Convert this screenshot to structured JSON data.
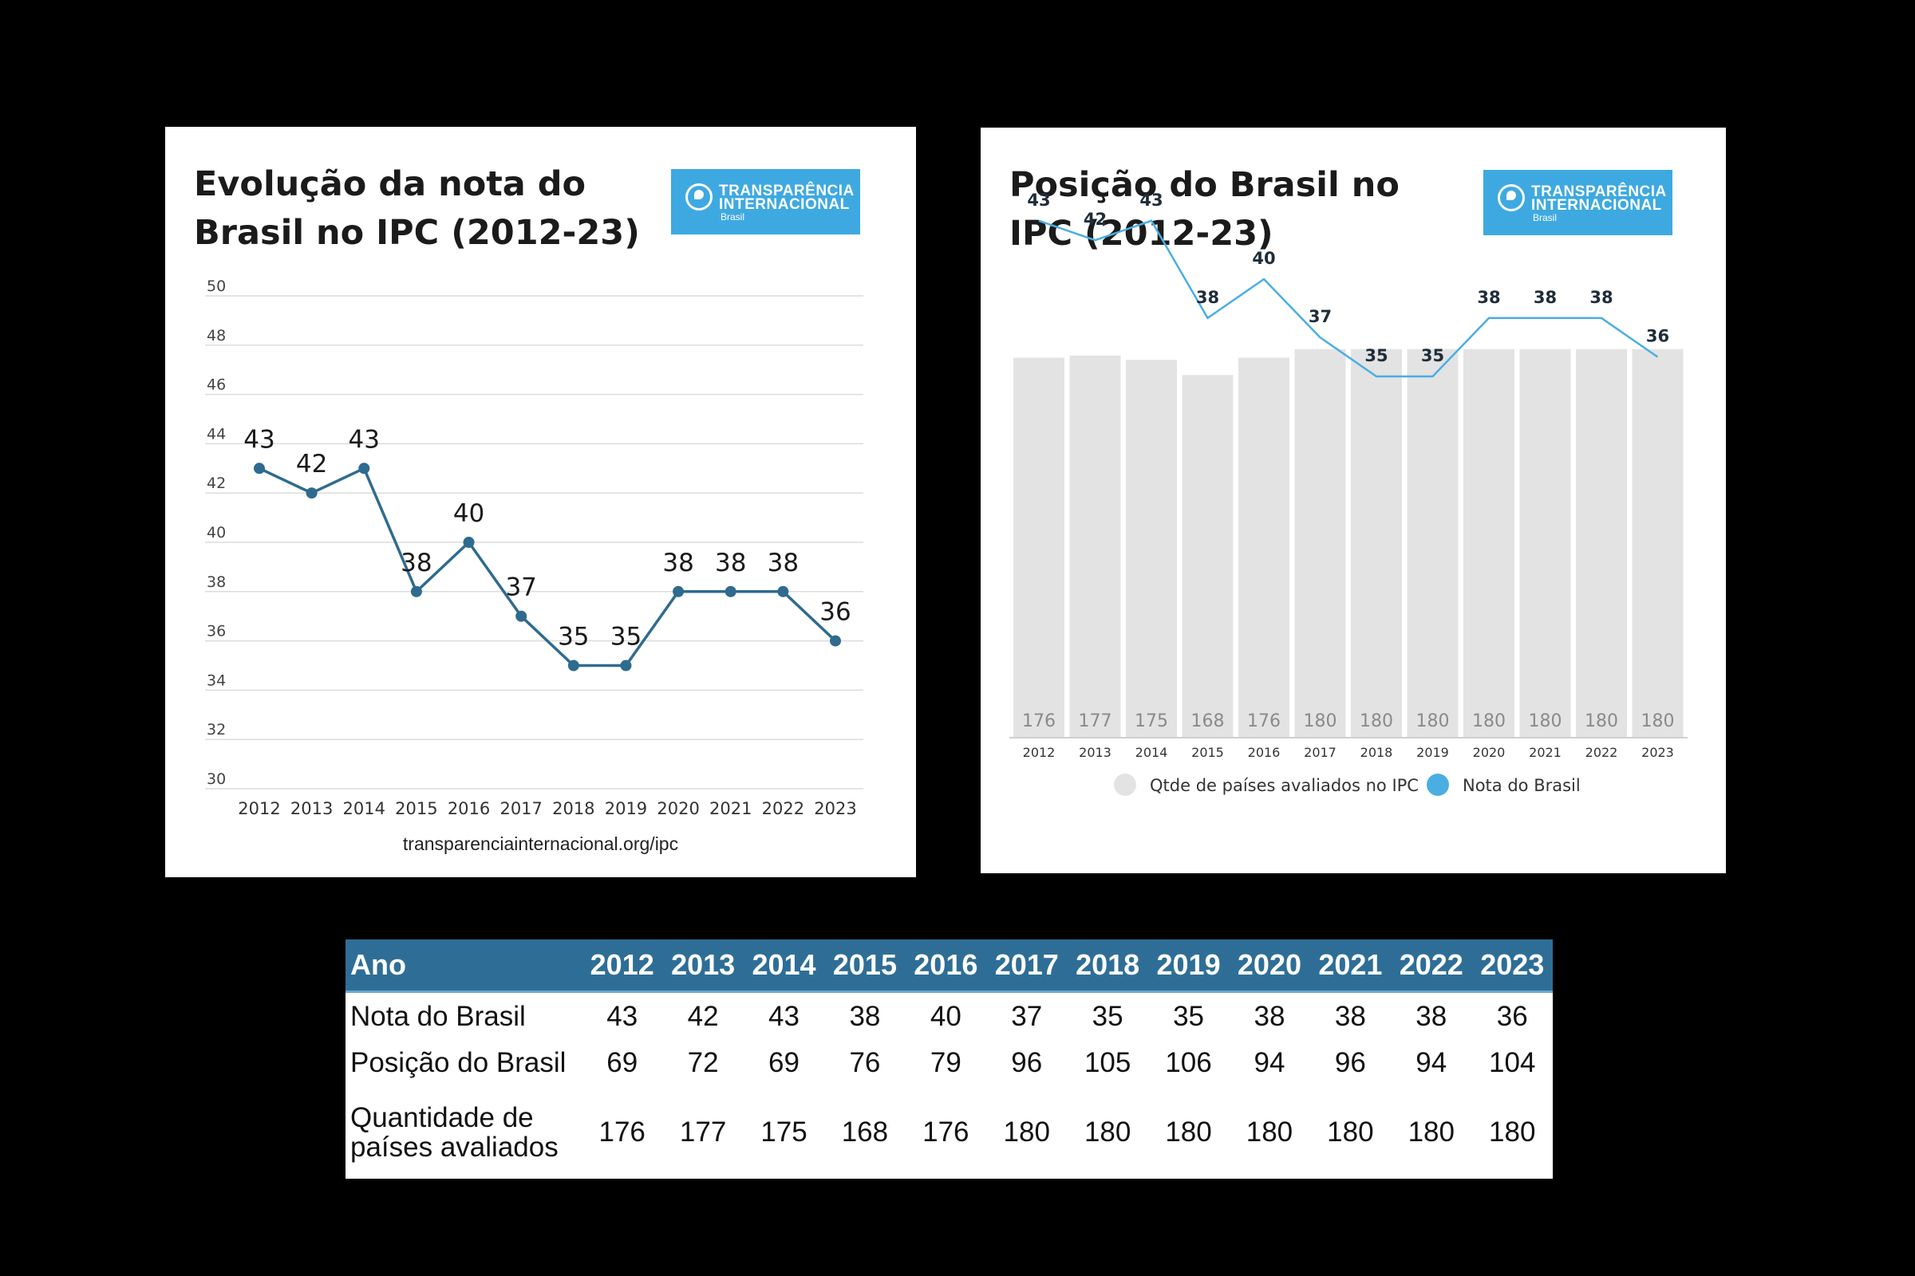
{
  "chart_data": [
    {
      "type": "line",
      "title": "Evolução da nota do Brasil no IPC (2012-23)",
      "logo": {
        "line1": "TRANSPARÊNCIA",
        "line2": "INTERNACIONAL",
        "line3": "Brasil"
      },
      "categories": [
        "2012",
        "2013",
        "2014",
        "2015",
        "2016",
        "2017",
        "2018",
        "2019",
        "2020",
        "2021",
        "2022",
        "2023"
      ],
      "values": [
        43,
        42,
        43,
        38,
        40,
        37,
        35,
        35,
        38,
        38,
        38,
        36
      ],
      "ylim": [
        30,
        50
      ],
      "yticks": [
        30,
        32,
        34,
        36,
        38,
        40,
        42,
        44,
        46,
        48,
        50
      ],
      "grid": true,
      "line_color": "#2e6b8e",
      "source": "transparenciainternacional.org/ipc"
    },
    {
      "type": "bar",
      "title": "Posição do Brasil no IPC (2012-23)",
      "logo": {
        "line1": "TRANSPARÊNCIA",
        "line2": "INTERNACIONAL",
        "line3": "Brasil"
      },
      "categories": [
        "2012",
        "2013",
        "2014",
        "2015",
        "2016",
        "2017",
        "2018",
        "2019",
        "2020",
        "2021",
        "2022",
        "2023"
      ],
      "series": [
        {
          "name": "Qtde de países avaliados no IPC",
          "type": "bar",
          "color": "#e3e3e3",
          "values": [
            176,
            177,
            175,
            168,
            176,
            180,
            180,
            180,
            180,
            180,
            180,
            180
          ]
        },
        {
          "name": "Nota do Brasil",
          "type": "line",
          "color": "#4aaee3",
          "values": [
            43,
            42,
            43,
            38,
            40,
            37,
            35,
            35,
            38,
            38,
            38,
            36
          ]
        }
      ],
      "legend": "bottom"
    },
    {
      "type": "table",
      "header": [
        "Ano",
        "2012",
        "2013",
        "2014",
        "2015",
        "2016",
        "2017",
        "2018",
        "2019",
        "2020",
        "2021",
        "2022",
        "2023"
      ],
      "rows": [
        {
          "label": "Nota do Brasil",
          "values": [
            43,
            42,
            43,
            38,
            40,
            37,
            35,
            35,
            38,
            38,
            38,
            36
          ]
        },
        {
          "label": "Posição do Brasil",
          "values": [
            69,
            72,
            69,
            76,
            79,
            96,
            105,
            106,
            94,
            96,
            94,
            104
          ]
        },
        {
          "label": "Quantidade de países avaliados",
          "values": [
            176,
            177,
            175,
            168,
            176,
            180,
            180,
            180,
            180,
            180,
            180,
            180
          ]
        }
      ],
      "header_color": "#2e6e96"
    }
  ]
}
